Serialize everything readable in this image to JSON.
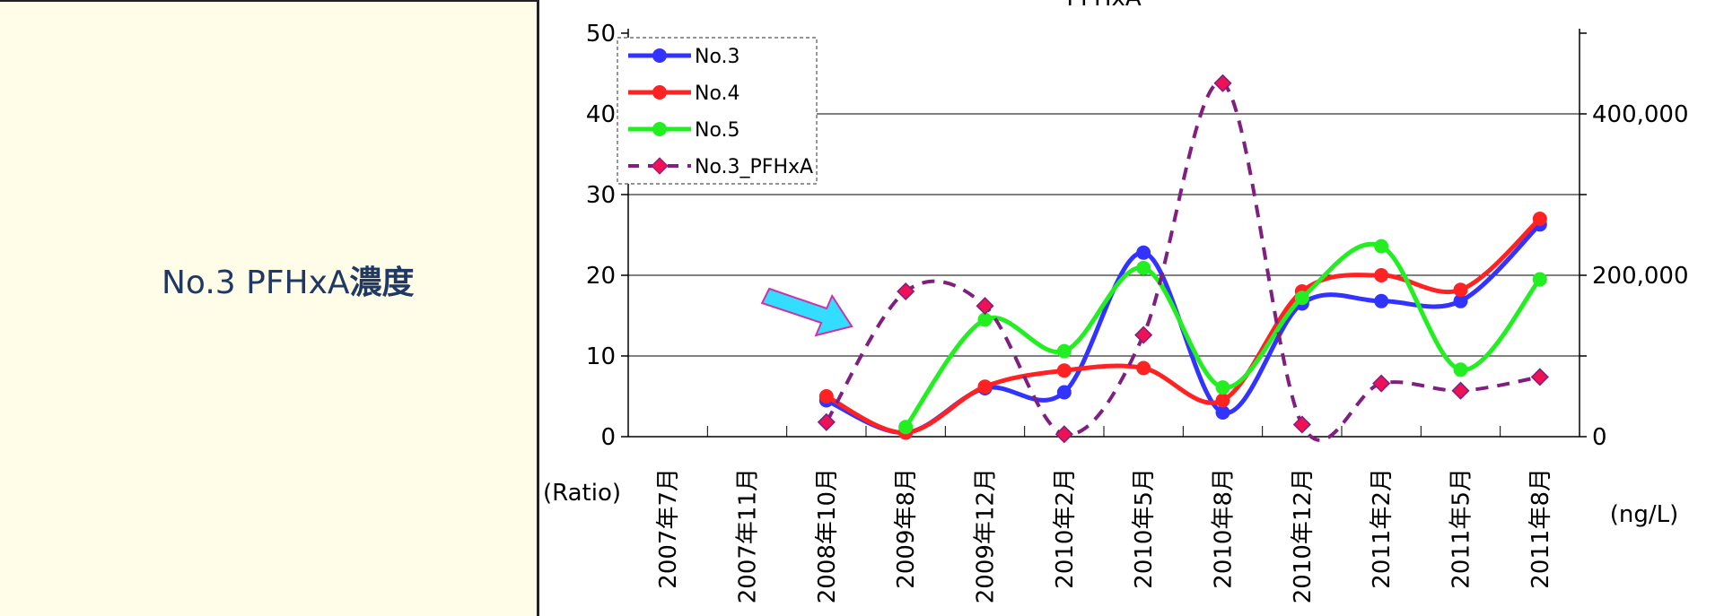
{
  "panel": {
    "label_prefix": "No.3 PFHxA",
    "label_suffix": "濃度"
  },
  "chart_data": {
    "type": "line",
    "title": "PFHxA",
    "categories": [
      "2007年7月",
      "2007年11月",
      "2008年10月",
      "2009年8月",
      "2009年12月",
      "2010年2月",
      "2010年5月",
      "2010年8月",
      "2010年12月",
      "2011年2月",
      "2011年5月",
      "2011年8月"
    ],
    "y_left": {
      "label": "(Ratio)",
      "ylim": [
        0,
        50
      ],
      "ticks": [
        "0",
        "10",
        "20",
        "30",
        "40",
        "50"
      ]
    },
    "y_right": {
      "label": "(ng/L)",
      "ylim": [
        0,
        500000
      ],
      "ticks": [
        "0",
        "200,000",
        "400,000"
      ]
    },
    "grid": true,
    "legend_position": "top-left",
    "series": [
      {
        "name": "No.3",
        "axis": "left",
        "color": "#3333ff",
        "marker": "circle",
        "style": "solid",
        "values": [
          null,
          null,
          4.5,
          0.5,
          6,
          5.5,
          22.8,
          3,
          16.5,
          16.8,
          16.8,
          26.3
        ]
      },
      {
        "name": "No.4",
        "axis": "left",
        "color": "#ff2222",
        "marker": "circle",
        "style": "solid",
        "values": [
          null,
          null,
          5,
          0.5,
          6.2,
          8.2,
          8.5,
          4.5,
          18,
          20,
          18.2,
          27
        ]
      },
      {
        "name": "No.5",
        "axis": "left",
        "color": "#22ee22",
        "marker": "circle",
        "style": "solid",
        "values": [
          null,
          null,
          null,
          1.2,
          14.5,
          10.6,
          20.9,
          6.1,
          17.2,
          23.6,
          8.3,
          19.5
        ]
      },
      {
        "name": "No.3_PFHxA",
        "axis": "right",
        "color": "#7f1f7f",
        "marker": "diamond",
        "marker_color": "#ee1155",
        "style": "dashed",
        "values": [
          null,
          null,
          18000,
          180000,
          162000,
          3000,
          126000,
          438000,
          15000,
          66000,
          57000,
          74000
        ]
      }
    ],
    "annotations": [
      {
        "type": "arrow",
        "color": "#33ddff",
        "points_to": "2009年8月"
      }
    ]
  }
}
